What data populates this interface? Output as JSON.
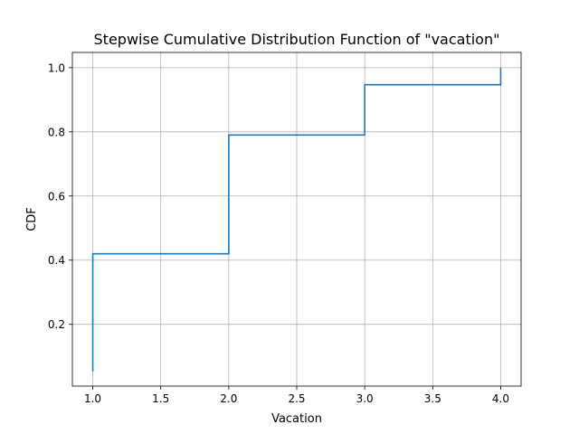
{
  "chart_data": {
    "type": "line",
    "drawstyle": "steps-post",
    "title": "Stepwise Cumulative Distribution Function of \"vacation\"",
    "xlabel": "Vacation",
    "ylabel": "CDF",
    "xlim": [
      0.85,
      4.15
    ],
    "ylim": [
      0.0075,
      1.0475
    ],
    "x_ticks": [
      1.0,
      1.5,
      2.0,
      2.5,
      3.0,
      3.5,
      4.0
    ],
    "x_tick_labels": [
      "1.0",
      "1.5",
      "2.0",
      "2.5",
      "3.0",
      "3.5",
      "4.0"
    ],
    "y_ticks": [
      0.2,
      0.4,
      0.6,
      0.8,
      1.0
    ],
    "y_tick_labels": [
      "0.2",
      "0.4",
      "0.6",
      "0.8",
      "1.0"
    ],
    "grid": true,
    "series": [
      {
        "color": "#1f77b4",
        "x": [
          1.0,
          1.0,
          2.0,
          3.0,
          4.0,
          4.0
        ],
        "y": [
          0.053,
          0.42,
          0.79,
          0.947,
          0.947,
          1.0
        ]
      }
    ]
  }
}
